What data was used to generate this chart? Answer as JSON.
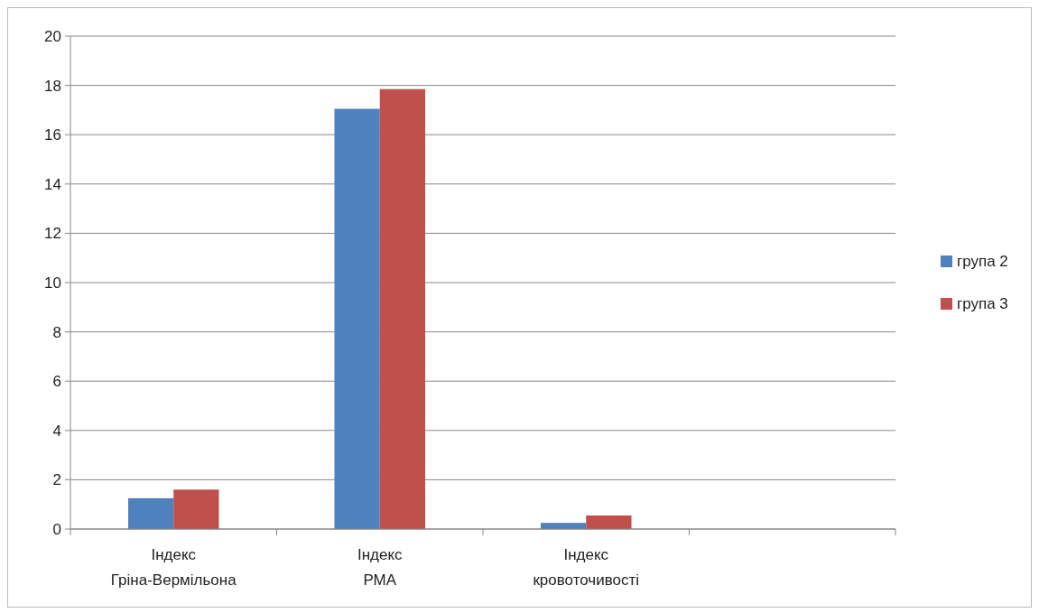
{
  "chart_data": {
    "type": "bar",
    "categories": [
      "Індекс Гріна-Вермільона",
      "Індекс РМА",
      "Індекс кровоточивості",
      null
    ],
    "series": [
      {
        "name": "група 2",
        "color": "#4f81bd",
        "values": [
          1.25,
          17.05,
          0.25,
          null
        ]
      },
      {
        "name": "група 3",
        "color": "#c0504d",
        "values": [
          1.6,
          17.85,
          0.55,
          null
        ]
      }
    ],
    "ylim": [
      0,
      20
    ],
    "yticks": [
      0,
      2,
      4,
      6,
      8,
      10,
      12,
      14,
      16,
      18,
      20
    ],
    "grid": "y",
    "legend": "right"
  }
}
